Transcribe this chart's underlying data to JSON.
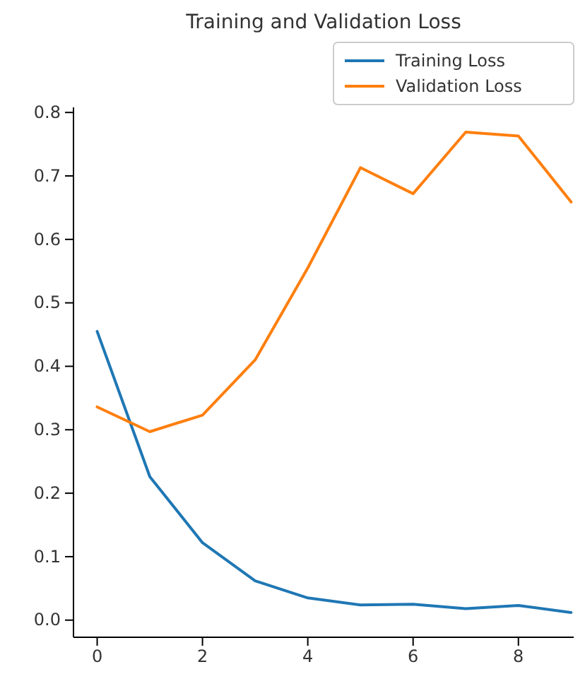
{
  "chart_data": {
    "type": "line",
    "title": "Training and Validation Loss",
    "x": [
      0,
      1,
      2,
      3,
      4,
      5,
      6,
      7,
      8,
      9
    ],
    "series": [
      {
        "name": "Training Loss",
        "color": "#1f77b4",
        "values": [
          0.455,
          0.226,
          0.122,
          0.062,
          0.035,
          0.024,
          0.025,
          0.018,
          0.023,
          0.012
        ]
      },
      {
        "name": "Validation Loss",
        "color": "#ff7f0e",
        "values": [
          0.336,
          0.297,
          0.323,
          0.41,
          0.555,
          0.713,
          0.672,
          0.769,
          0.763,
          0.659
        ]
      }
    ],
    "xlim": [
      -0.45,
      9.05
    ],
    "ylim": [
      -0.027,
      0.808
    ],
    "xticks": [
      0,
      2,
      4,
      6,
      8
    ],
    "yticks": [
      {
        "value": 0,
        "label": "0.0"
      },
      0.1,
      0.2,
      0.3,
      0.4,
      0.5,
      0.6,
      0.7,
      0.8
    ],
    "legend": "top right",
    "grid": false,
    "line_style": "solid"
  }
}
